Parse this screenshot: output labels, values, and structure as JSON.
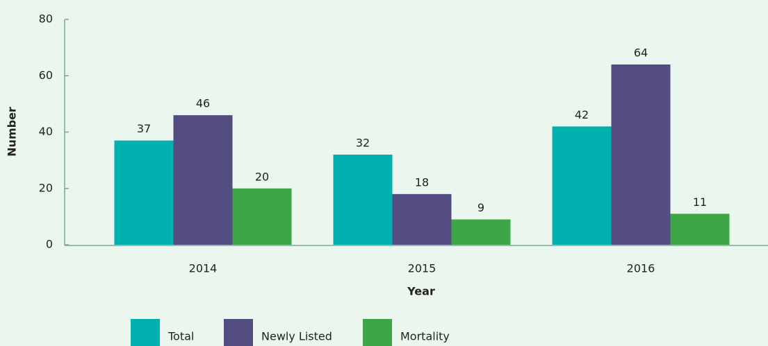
{
  "chart_data": {
    "type": "bar",
    "x_label": "Year",
    "y_label": "Number",
    "categories": [
      "2014",
      "2015",
      "2016"
    ],
    "series": [
      {
        "name": "Total",
        "color": "#00b1b0",
        "values": [
          37,
          32,
          42
        ]
      },
      {
        "name": "Newly Listed",
        "color": "#534d82",
        "values": [
          46,
          18,
          64
        ]
      },
      {
        "name": "Mortality",
        "color": "#3ea648",
        "values": [
          20,
          9,
          11
        ]
      }
    ],
    "ylim": [
      0,
      80
    ],
    "yticks": [
      0,
      20,
      40,
      60,
      80
    ],
    "grid": false,
    "legend": "bottom"
  }
}
